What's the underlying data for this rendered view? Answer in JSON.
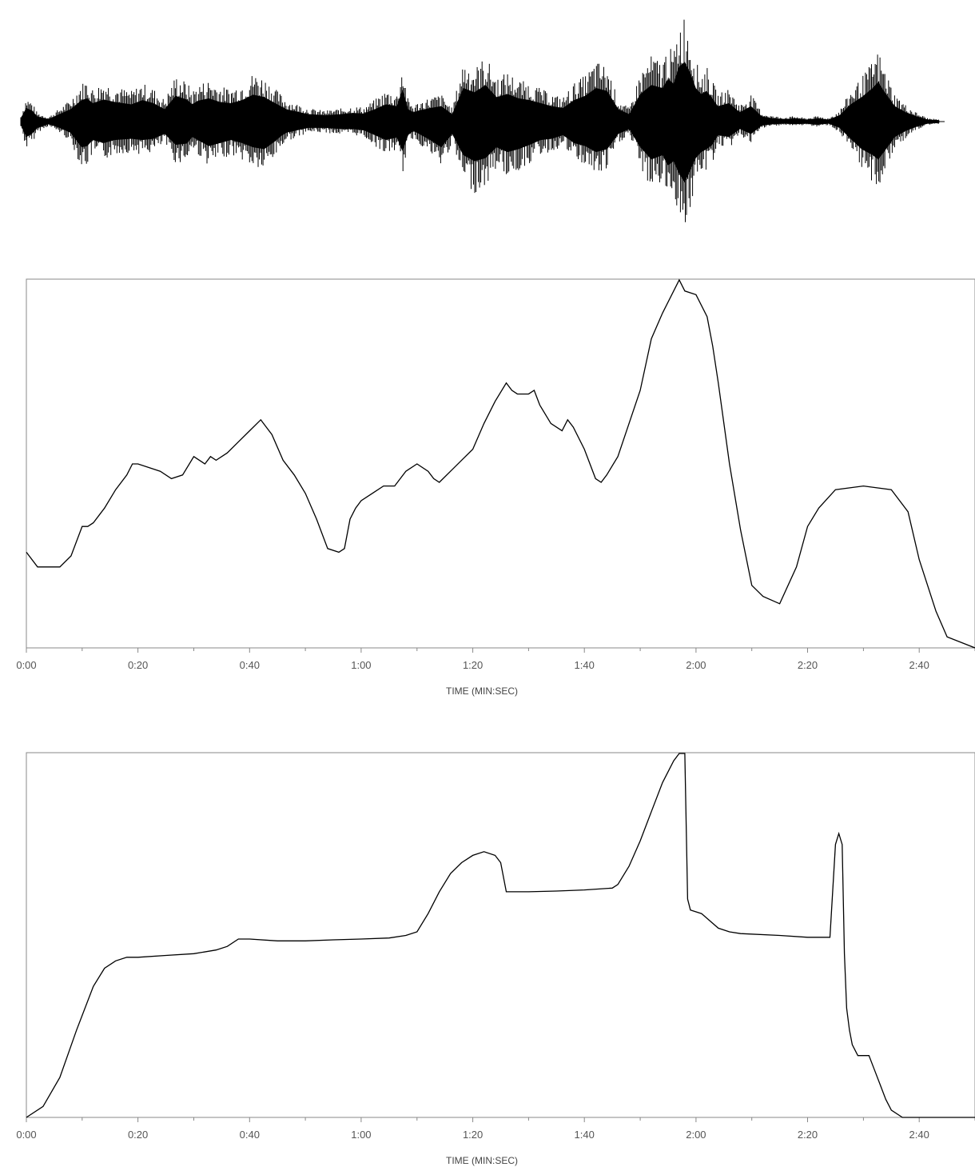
{
  "chart_data": [
    {
      "type": "waveform",
      "description_series": "audio amplitude envelope (positive / negative peaks)",
      "x_unit": "seconds",
      "xlim": [
        0,
        167
      ],
      "ylim": [
        -1,
        1
      ],
      "envelope": {
        "t": [
          0,
          1,
          2,
          3,
          5,
          7,
          9,
          11,
          12,
          13,
          15,
          17,
          20,
          22,
          24,
          26,
          28,
          30,
          31,
          32,
          34,
          36,
          38,
          40,
          42,
          44,
          46,
          47,
          48,
          50,
          52,
          55,
          58,
          60,
          62,
          64,
          66,
          68,
          69,
          70,
          71,
          72,
          74,
          76,
          78,
          80,
          82,
          84,
          86,
          88,
          90,
          92,
          94,
          96,
          98,
          100,
          102,
          104,
          106,
          108,
          110,
          112,
          114,
          116,
          117,
          118,
          119,
          120,
          121,
          122,
          123,
          124,
          125,
          126,
          128,
          130,
          132,
          134,
          136,
          138,
          140,
          142,
          144,
          146,
          148,
          150,
          152,
          154,
          155,
          156,
          158,
          160,
          162,
          164,
          166
        ],
        "pos": [
          0.05,
          0.22,
          0.18,
          0.08,
          0.04,
          0.12,
          0.2,
          0.35,
          0.38,
          0.3,
          0.36,
          0.32,
          0.28,
          0.35,
          0.3,
          0.2,
          0.42,
          0.36,
          0.28,
          0.34,
          0.38,
          0.32,
          0.3,
          0.35,
          0.44,
          0.4,
          0.3,
          0.25,
          0.2,
          0.16,
          0.12,
          0.1,
          0.12,
          0.14,
          0.13,
          0.2,
          0.28,
          0.25,
          0.52,
          0.2,
          0.15,
          0.18,
          0.22,
          0.25,
          0.12,
          0.55,
          0.48,
          0.6,
          0.4,
          0.45,
          0.38,
          0.35,
          0.3,
          0.25,
          0.22,
          0.35,
          0.42,
          0.55,
          0.5,
          0.2,
          0.12,
          0.45,
          0.6,
          0.55,
          0.7,
          0.62,
          0.9,
          0.98,
          0.8,
          0.55,
          0.45,
          0.5,
          0.38,
          0.25,
          0.3,
          0.15,
          0.25,
          0.08,
          0.05,
          0.04,
          0.05,
          0.03,
          0.05,
          0.03,
          0.1,
          0.28,
          0.4,
          0.55,
          0.65,
          0.5,
          0.25,
          0.15,
          0.08,
          0.03,
          0.02
        ],
        "neg": [
          -0.05,
          -0.25,
          -0.2,
          -0.1,
          -0.04,
          -0.1,
          -0.18,
          -0.42,
          -0.4,
          -0.3,
          -0.35,
          -0.3,
          -0.28,
          -0.3,
          -0.28,
          -0.2,
          -0.38,
          -0.36,
          -0.25,
          -0.3,
          -0.4,
          -0.35,
          -0.3,
          -0.35,
          -0.42,
          -0.45,
          -0.32,
          -0.24,
          -0.18,
          -0.14,
          -0.1,
          -0.1,
          -0.12,
          -0.12,
          -0.14,
          -0.22,
          -0.3,
          -0.26,
          -0.48,
          -0.22,
          -0.15,
          -0.2,
          -0.3,
          -0.42,
          -0.2,
          -0.55,
          -0.65,
          -0.6,
          -0.42,
          -0.5,
          -0.45,
          -0.38,
          -0.3,
          -0.28,
          -0.22,
          -0.35,
          -0.4,
          -0.5,
          -0.45,
          -0.2,
          -0.12,
          -0.42,
          -0.62,
          -0.55,
          -0.72,
          -0.65,
          -0.85,
          -1.0,
          -0.8,
          -0.6,
          -0.5,
          -0.45,
          -0.38,
          -0.22,
          -0.25,
          -0.12,
          -0.2,
          -0.06,
          -0.04,
          -0.03,
          -0.04,
          -0.03,
          -0.05,
          -0.03,
          -0.1,
          -0.28,
          -0.45,
          -0.55,
          -0.62,
          -0.5,
          -0.25,
          -0.15,
          -0.08,
          -0.03,
          -0.02
        ]
      }
    },
    {
      "type": "line",
      "xlabel": "TIME (MIN:SEC)",
      "ylabel": "",
      "x_unit": "seconds",
      "xlim": [
        0,
        170
      ],
      "ylim": [
        0,
        100
      ],
      "x_ticks": [
        0,
        20,
        40,
        60,
        80,
        100,
        120,
        140,
        160
      ],
      "x_tick_labels": [
        "0:00",
        "0:20",
        "0:40",
        "1:00",
        "1:20",
        "1:40",
        "2:00",
        "2:20",
        "2:40"
      ],
      "grid": false,
      "series": [
        {
          "x": [
            0,
            2,
            6,
            8,
            10,
            11,
            12,
            14,
            16,
            18,
            19,
            20,
            22,
            24,
            26,
            28,
            30,
            32,
            33,
            34,
            36,
            38,
            40,
            42,
            43,
            44,
            46,
            48,
            50,
            52,
            54,
            56,
            57,
            58,
            59,
            60,
            62,
            64,
            66,
            68,
            70,
            72,
            73,
            74,
            76,
            78,
            80,
            82,
            84,
            86,
            87,
            88,
            90,
            91,
            92,
            94,
            96,
            97,
            98,
            100,
            102,
            103,
            104,
            106,
            108,
            110,
            112,
            114,
            117,
            118,
            120,
            122,
            123,
            124,
            126,
            128,
            130,
            132,
            135,
            138,
            140,
            142,
            145,
            150,
            155,
            158,
            160,
            163,
            165,
            170
          ],
          "y": [
            26,
            22,
            22,
            25,
            33,
            33,
            34,
            38,
            43,
            47,
            50,
            50,
            49,
            48,
            46,
            47,
            52,
            50,
            52,
            51,
            53,
            56,
            59,
            62,
            60,
            58,
            51,
            47,
            42,
            35,
            27,
            26,
            27,
            35,
            38,
            40,
            42,
            44,
            44,
            48,
            50,
            48,
            46,
            45,
            48,
            51,
            54,
            61,
            67,
            72,
            70,
            69,
            69,
            70,
            66,
            61,
            59,
            62,
            60,
            54,
            46,
            45,
            47,
            52,
            61,
            70,
            84,
            91,
            100,
            97,
            96,
            90,
            82,
            72,
            50,
            32,
            17,
            14,
            12,
            22,
            33,
            38,
            43,
            44,
            43,
            37,
            24,
            10,
            3,
            0
          ]
        }
      ]
    },
    {
      "type": "line",
      "xlabel": "TIME (MIN:SEC)",
      "ylabel": "",
      "x_unit": "seconds",
      "xlim": [
        0,
        170
      ],
      "ylim": [
        0,
        100
      ],
      "x_ticks": [
        0,
        20,
        40,
        60,
        80,
        100,
        120,
        140,
        160
      ],
      "x_tick_labels": [
        "0:00",
        "0:20",
        "0:40",
        "1:00",
        "1:20",
        "1:40",
        "2:00",
        "2:20",
        "2:40"
      ],
      "grid": false,
      "series": [
        {
          "x": [
            0,
            3,
            6,
            9,
            12,
            14,
            16,
            18,
            20,
            25,
            30,
            34,
            36,
            38,
            40,
            45,
            50,
            55,
            60,
            65,
            68,
            70,
            72,
            74,
            76,
            78,
            80,
            82,
            84,
            85,
            86,
            87,
            90,
            95,
            100,
            105,
            106,
            108,
            110,
            112,
            114,
            116,
            117,
            118,
            118.5,
            119,
            121,
            124,
            126,
            128,
            135,
            140,
            143,
            144,
            145,
            145.6,
            146.2,
            146.6,
            147,
            147.5,
            148,
            149,
            150,
            151,
            152,
            153,
            154,
            155,
            157,
            160,
            165,
            170
          ],
          "y": [
            0,
            3,
            11,
            24,
            36,
            41,
            43,
            44,
            44,
            44.5,
            45,
            46,
            47,
            49,
            49,
            48.5,
            48.5,
            48.8,
            49,
            49.3,
            50,
            51,
            56,
            62,
            67,
            70,
            72,
            73,
            72,
            70,
            62,
            62,
            62,
            62.2,
            62.5,
            63,
            64,
            69,
            76,
            84,
            92,
            98,
            100,
            100,
            60,
            57,
            56,
            52,
            51,
            50.5,
            50,
            49.5,
            49.5,
            49.5,
            75,
            78,
            75,
            45,
            30,
            24,
            20,
            17,
            17,
            17,
            13,
            9,
            5,
            2,
            0,
            0,
            0,
            0
          ]
        }
      ]
    }
  ]
}
